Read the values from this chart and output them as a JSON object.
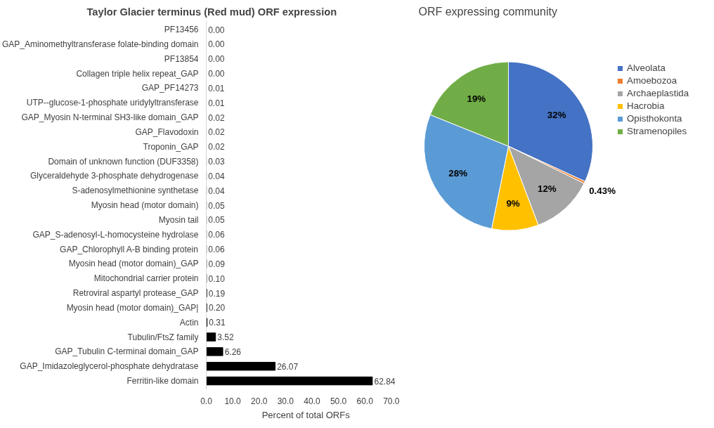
{
  "chart_data": [
    {
      "type": "bar",
      "orientation": "horizontal",
      "title": "Taylor Glacier terminus (Red mud) ORF expression",
      "xlabel": "Percent of  total ORFs",
      "categories": [
        "PF13456",
        "GAP_Aminomethyltransferase folate-binding domain",
        "PF13854",
        "Collagen triple helix repeat_GAP",
        "GAP_PF14273",
        "UTP--glucose-1-phosphate uridylyltransferase",
        "GAP_Myosin N-terminal SH3-like domain_GAP",
        "GAP_Flavodoxin",
        "Troponin_GAP",
        "Domain of unknown function (DUF3358)",
        "Glyceraldehyde 3-phosphate dehydrogenase",
        "S-adenosylmethionine synthetase",
        "Myosin head (motor domain)",
        "Myosin tail",
        "GAP_S-adenosyl-L-homocysteine hydrolase",
        "GAP_Chlorophyll A-B binding protein",
        "Myosin head (motor domain)_GAP",
        "Mitochondrial carrier protein",
        "Retroviral aspartyl protease_GAP",
        "Myosin head (motor domain)_GAP|",
        "Actin",
        "Tubulin/FtsZ family",
        "GAP_Tubulin C-terminal domain_GAP",
        "GAP_Imidazoleglycerol-phosphate dehydratase",
        "Ferritin-like domain"
      ],
      "values": [
        0,
        0,
        0,
        0,
        0.01,
        0.01,
        0.02,
        0.02,
        0.02,
        0.03,
        0.04,
        0.04,
        0.05,
        0.05,
        0.06,
        0.06,
        0.09,
        0.1,
        0.19,
        0.2,
        0.31,
        3.52,
        6.26,
        26.07,
        62.84
      ],
      "value_labels": [
        "0.00",
        "0.00",
        "0.00",
        "0.00",
        "0.01",
        "0.01",
        "0.02",
        "0.02",
        "0.02",
        "0.03",
        "0.04",
        "0.04",
        "0.05",
        "0.05",
        "0.06",
        "0.06",
        "0.09",
        "0.10",
        "0.19",
        "0.20",
        "0.31",
        "3.52",
        "6.26",
        "26.07",
        "62.84"
      ],
      "color": "#000000",
      "xlim": [
        0,
        70
      ],
      "xticks": [
        {
          "value": 0,
          "label": "0.0"
        },
        {
          "value": 10,
          "label": "10.0"
        },
        {
          "value": 20,
          "label": "20.0"
        },
        {
          "value": 30,
          "label": "30.0"
        },
        {
          "value": 40,
          "label": "40.0"
        },
        {
          "value": 50,
          "label": "50.0"
        },
        {
          "value": 60,
          "label": "60.0"
        },
        {
          "value": 70,
          "label": "70.0"
        }
      ],
      "grid": false
    },
    {
      "type": "pie",
      "title": "ORF expressing community",
      "categories": [
        "Alveolata",
        "Amoebozoa",
        "Archaeplastida",
        "Hacrobia",
        "Opisthokonta",
        "Stramenopiles"
      ],
      "values": [
        32,
        0.43,
        12,
        9,
        28,
        19
      ],
      "value_labels": [
        "32%",
        "0.43%",
        "12%",
        "9%",
        "28%",
        "19%"
      ],
      "colors": [
        "#4472c4",
        "#ed7d31",
        "#a5a5a5",
        "#ffc000",
        "#5b9bd5",
        "#70ad47"
      ],
      "legend": "right"
    }
  ]
}
